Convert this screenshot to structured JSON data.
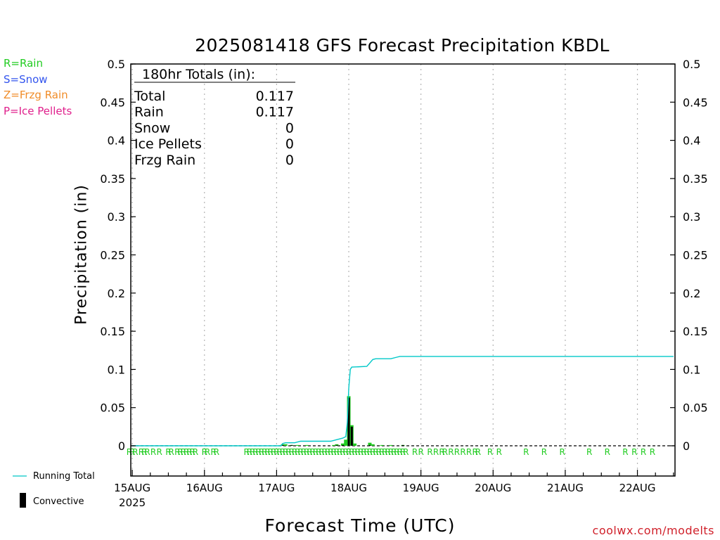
{
  "chart_data": {
    "type": "bar",
    "title": "2025081418 GFS Forecast Precipitation KBDL",
    "xlabel": "Forecast Time (UTC)",
    "ylabel": "Precipitation (in)",
    "ylim": [
      0,
      0.5
    ],
    "y_ticks": [
      "0",
      "0.05",
      "0.1",
      "0.15",
      "0.2",
      "0.25",
      "0.3",
      "0.35",
      "0.4",
      "0.45",
      "0.5"
    ],
    "x_range_hours": [
      -0.5,
      180.5
    ],
    "x_ticks": [
      {
        "hour": 0,
        "label": "15AUG"
      },
      {
        "hour": 24,
        "label": "16AUG"
      },
      {
        "hour": 48,
        "label": "17AUG"
      },
      {
        "hour": 72,
        "label": "18AUG"
      },
      {
        "hour": 96,
        "label": "19AUG"
      },
      {
        "hour": 120,
        "label": "20AUG"
      },
      {
        "hour": 144,
        "label": "21AUG"
      },
      {
        "hour": 168,
        "label": "22AUG"
      }
    ],
    "x_year_label": "2025",
    "grid": true,
    "totals_box": {
      "header": "180hr Totals (in):",
      "rows": [
        {
          "label": "Total",
          "value": "0.117"
        },
        {
          "label": "Rain",
          "value": "0.117"
        },
        {
          "label": "Snow",
          "value": "0"
        },
        {
          "label": "Ice Pellets",
          "value": "0"
        },
        {
          "label": "Frzg Rain",
          "value": "0"
        }
      ]
    },
    "type_legend": [
      {
        "text": "R=Rain",
        "color": "#22cc22"
      },
      {
        "text": "S=Snow",
        "color": "#3355ee"
      },
      {
        "text": "Z=Frzg Rain",
        "color": "#f08c28"
      },
      {
        "text": "P=Ice Pellets",
        "color": "#e0208c"
      }
    ],
    "series": [
      {
        "name": "Precipitation",
        "color": "#22cc22",
        "points": [
          [
            50,
            0.002
          ],
          [
            51,
            0.002
          ],
          [
            53,
            0.001
          ],
          [
            55,
            0.001
          ],
          [
            58,
            0.001
          ],
          [
            67,
            0.001
          ],
          [
            68,
            0.002
          ],
          [
            70,
            0.003
          ],
          [
            71,
            0.008
          ],
          [
            72,
            0.065
          ],
          [
            73,
            0.027
          ],
          [
            74,
            0.003
          ],
          [
            79,
            0.004
          ],
          [
            80,
            0.002
          ],
          [
            83,
            0.001
          ],
          [
            86,
            0.001
          ],
          [
            90,
            0.001
          ]
        ]
      },
      {
        "name": "Convective",
        "color": "#000000",
        "points": [
          [
            50,
            0.001
          ],
          [
            53,
            0.001
          ],
          [
            68,
            0.001
          ],
          [
            70,
            0.001
          ],
          [
            72,
            0.063
          ],
          [
            73,
            0.025
          ],
          [
            79,
            0.001
          ],
          [
            90,
            0.001
          ]
        ]
      },
      {
        "name": "Running Total",
        "color": "#00c8c8",
        "points": [
          [
            0,
            0
          ],
          [
            49.5,
            0
          ],
          [
            50,
            0.003
          ],
          [
            51,
            0.004
          ],
          [
            54,
            0.004
          ],
          [
            56,
            0.006
          ],
          [
            66,
            0.006
          ],
          [
            68,
            0.008
          ],
          [
            70,
            0.01
          ],
          [
            71,
            0.012
          ],
          [
            71.5,
            0.03
          ],
          [
            72,
            0.075
          ],
          [
            72.5,
            0.1
          ],
          [
            73,
            0.103
          ],
          [
            78,
            0.104
          ],
          [
            80,
            0.113
          ],
          [
            81,
            0.114
          ],
          [
            86,
            0.114
          ],
          [
            88,
            0.116
          ],
          [
            89,
            0.117
          ],
          [
            180,
            0.117
          ]
        ]
      }
    ],
    "type_markers": {
      "letter": "R",
      "color": "#22cc22",
      "hours": [
        -1,
        0,
        1,
        3,
        4,
        5,
        7,
        9,
        12,
        13,
        15,
        16,
        17,
        18,
        19,
        20,
        21,
        24,
        25,
        27,
        28,
        38,
        39,
        40,
        41,
        42,
        43,
        44,
        45,
        46,
        47,
        48,
        49,
        50,
        51,
        52,
        53,
        54,
        55,
        56,
        57,
        58,
        59,
        60,
        61,
        62,
        63,
        64,
        65,
        66,
        67,
        68,
        69,
        70,
        71,
        72,
        73,
        74,
        75,
        76,
        77,
        78,
        79,
        80,
        81,
        82,
        83,
        84,
        85,
        86,
        87,
        88,
        89,
        90,
        91,
        94,
        96,
        99,
        101,
        103,
        104,
        106,
        108,
        110,
        112,
        114,
        115,
        119,
        122,
        131,
        137,
        143,
        152,
        158,
        164,
        167,
        170,
        173
      ]
    },
    "bottom_legend": [
      {
        "name": "Running Total"
      },
      {
        "name": "Convective"
      }
    ]
  },
  "watermark": "coolwx.com/modelts"
}
